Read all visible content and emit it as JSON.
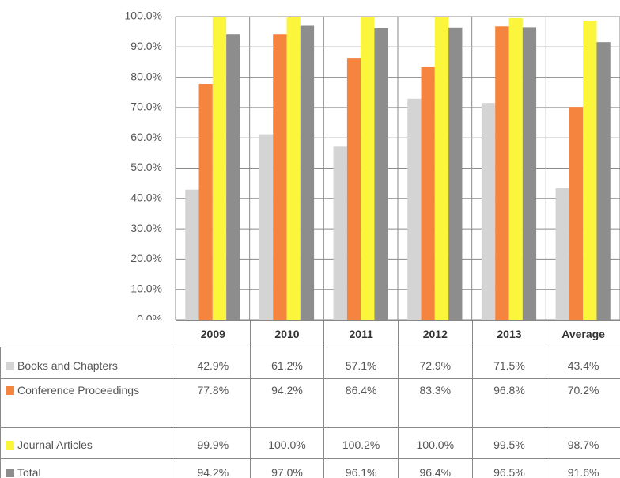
{
  "chart_data": {
    "type": "bar",
    "categories": [
      "2009",
      "2010",
      "2011",
      "2012",
      "2013",
      "Average"
    ],
    "series": [
      {
        "name": "Books and Chapters",
        "color": "#d4d4d4",
        "values": [
          42.9,
          61.2,
          57.1,
          72.9,
          71.5,
          43.4
        ],
        "value_labels": [
          "42.9%",
          "61.2%",
          "57.1%",
          "72.9%",
          "71.5%",
          "43.4%"
        ]
      },
      {
        "name": "Conference Proceedings",
        "color": "#f5843f",
        "values": [
          77.8,
          94.2,
          86.4,
          83.3,
          96.8,
          70.2
        ],
        "value_labels": [
          "77.8%",
          "94.2%",
          "86.4%",
          "83.3%",
          "96.8%",
          "70.2%"
        ]
      },
      {
        "name": "Journal Articles",
        "color": "#fbf53c",
        "values": [
          99.9,
          100.0,
          100.2,
          100.0,
          99.5,
          98.7
        ],
        "value_labels": [
          "99.9%",
          "100.0%",
          "100.2%",
          "100.0%",
          "99.5%",
          "98.7%"
        ]
      },
      {
        "name": "Total",
        "color": "#8d8d8d",
        "values": [
          94.2,
          97.0,
          96.1,
          96.4,
          96.5,
          91.6
        ],
        "value_labels": [
          "94.2%",
          "97.0%",
          "96.1%",
          "96.4%",
          "96.5%",
          "91.6%"
        ]
      }
    ],
    "ylim": [
      0,
      100
    ],
    "yticks": [
      {
        "value": 0,
        "label": "0.0%"
      },
      {
        "value": 10,
        "label": "10.0%"
      },
      {
        "value": 20,
        "label": "20.0%"
      },
      {
        "value": 30,
        "label": "30.0%"
      },
      {
        "value": 40,
        "label": "40.0%"
      },
      {
        "value": 50,
        "label": "50.0%"
      },
      {
        "value": 60,
        "label": "60.0%"
      },
      {
        "value": 70,
        "label": "70.0%"
      },
      {
        "value": 80,
        "label": "80.0%"
      },
      {
        "value": 90,
        "label": "90.0%"
      },
      {
        "value": 100,
        "label": "100.0%"
      }
    ],
    "grid": true
  }
}
